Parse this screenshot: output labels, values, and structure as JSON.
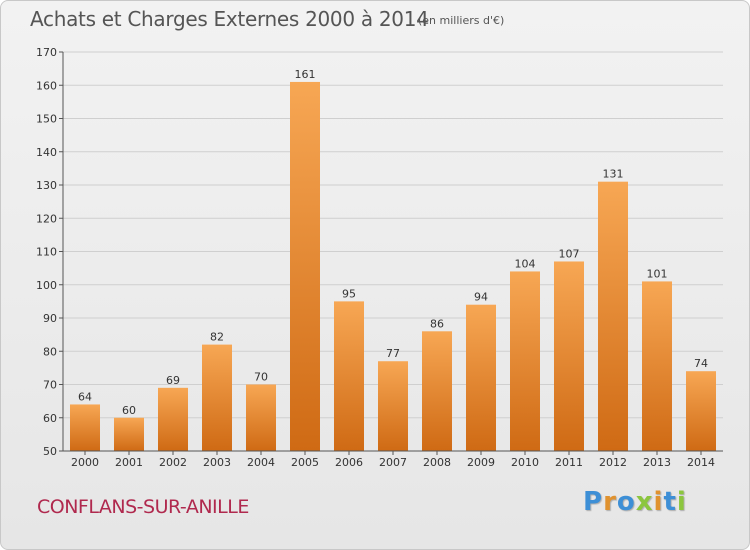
{
  "header": {
    "title": "Achats et Charges Externes 2000 à 2014",
    "subtitle": "(en milliers d'€)"
  },
  "footer": {
    "place": "CONFLANS-SUR-ANILLE",
    "logo_letters": [
      {
        "char": "P",
        "color": "#3d8fd6"
      },
      {
        "char": "r",
        "color": "#e0922f"
      },
      {
        "char": "o",
        "color": "#3d8fd6"
      },
      {
        "char": "x",
        "color": "#8cc63e"
      },
      {
        "char": "i",
        "color": "#e0922f"
      },
      {
        "char": "t",
        "color": "#3d8fd6"
      },
      {
        "char": "i",
        "color": "#8cc63e"
      }
    ]
  },
  "colors": {
    "bar_light": "#f7a754",
    "bar_dark": "#cf6a14",
    "grid": "#cfcfcf",
    "axis": "#555555"
  },
  "chart_data": {
    "type": "bar",
    "title": "Achats et Charges Externes 2000 à 2014",
    "subtitle": "(en milliers d'€)",
    "xlabel": "",
    "ylabel": "",
    "categories": [
      "2000",
      "2001",
      "2002",
      "2003",
      "2004",
      "2005",
      "2006",
      "2007",
      "2008",
      "2009",
      "2010",
      "2011",
      "2012",
      "2013",
      "2014"
    ],
    "values": [
      64,
      60,
      69,
      82,
      70,
      161,
      95,
      77,
      86,
      94,
      104,
      107,
      131,
      101,
      74
    ],
    "ylim": [
      50,
      170
    ],
    "yticks": [
      50,
      60,
      70,
      80,
      90,
      100,
      110,
      120,
      130,
      140,
      150,
      160,
      170
    ],
    "grid": true,
    "data_labels": true
  }
}
